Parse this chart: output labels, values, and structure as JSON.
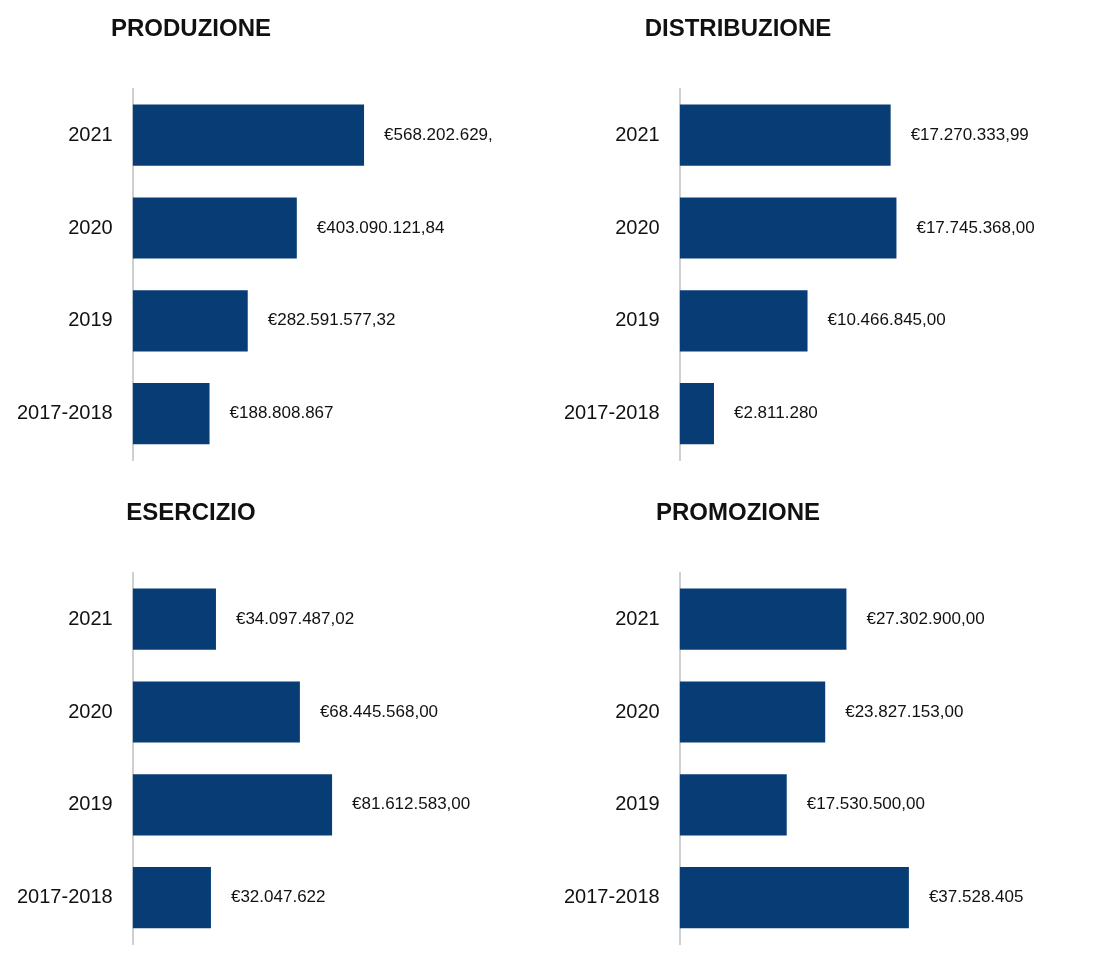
{
  "chart_data": [
    {
      "type": "bar",
      "orientation": "horizontal",
      "title": "PRODUZIONE",
      "categories": [
        "2021",
        "2020",
        "2019",
        "2017-2018"
      ],
      "color": "#073d74",
      "values": [
        568202629,
        403090121.84,
        282591577.32,
        188808867
      ],
      "value_labels": [
        "€568.202.629,",
        "€403.090.121,84",
        "€282.591.577,32",
        "€188.808.867"
      ]
    },
    {
      "type": "bar",
      "orientation": "horizontal",
      "title": "DISTRIBUZIONE",
      "categories": [
        "2021",
        "2020",
        "2019",
        "2017-2018"
      ],
      "color": "#073d74",
      "values": [
        17270333.99,
        17745368,
        10466845,
        2811280
      ],
      "value_labels": [
        "€17.270.333,99",
        "€17.745.368,00",
        "€10.466.845,00",
        "€2.811.280"
      ]
    },
    {
      "type": "bar",
      "orientation": "horizontal",
      "title": "ESERCIZIO",
      "categories": [
        "2021",
        "2020",
        "2019",
        "2017-2018"
      ],
      "color": "#073d74",
      "values": [
        34097487.02,
        68445568,
        81612583,
        32047622
      ],
      "value_labels": [
        "€34.097.487,02",
        "€68.445.568,00",
        "€81.612.583,00",
        "€32.047.622"
      ]
    },
    {
      "type": "bar",
      "orientation": "horizontal",
      "title": "PROMOZIONE",
      "categories": [
        "2021",
        "2020",
        "2019",
        "2017-2018"
      ],
      "color": "#073d74",
      "values": [
        27302900,
        23827153,
        17530500,
        37528405
      ],
      "value_labels": [
        "€27.302.900,00",
        "€23.827.153,00",
        "€17.530.500,00",
        "€37.528.405"
      ]
    }
  ]
}
